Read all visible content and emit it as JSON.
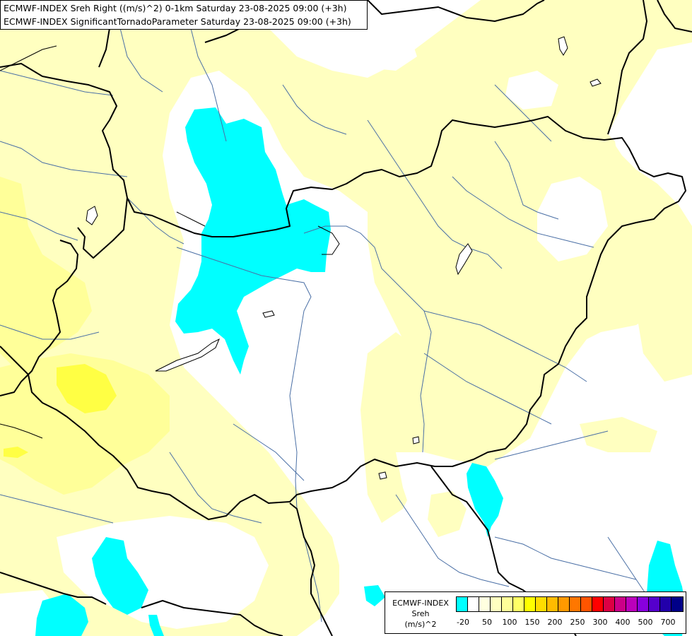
{
  "header": {
    "line1": "ECMWF-INDEX Sreh Right ((m/s)^2) 0-1km Saturday 23-08-2025 09:00 (+3h)",
    "line2": "ECMWF-INDEX SignificantTornadoParameter Saturday 23-08-2025 09:00 (+3h)"
  },
  "legend": {
    "title": "ECMWF-INDEX",
    "variable": "Sreh",
    "unit": "(m/s)^2",
    "colors": [
      "#00ffff",
      "#ffffff",
      "#ffffe0",
      "#ffffc0",
      "#ffff99",
      "#ffff66",
      "#ffff00",
      "#ffdd00",
      "#ffbb00",
      "#ff9900",
      "#ff7700",
      "#ff5500",
      "#ff0000",
      "#dd0044",
      "#cc0088",
      "#bb00bb",
      "#8800dd",
      "#5500cc",
      "#2200aa",
      "#000088"
    ],
    "ticks": [
      "-20",
      "50",
      "100",
      "150",
      "200",
      "250",
      "300",
      "400",
      "500",
      "700"
    ]
  },
  "map": {
    "colors": {
      "below_minus20": "#00ffff",
      "near_zero": "#ffffff",
      "low": "#ffffc0",
      "medium": "#ffff99",
      "high": "#ffff40",
      "border": "#000000",
      "river": "#4a6fa5"
    }
  }
}
